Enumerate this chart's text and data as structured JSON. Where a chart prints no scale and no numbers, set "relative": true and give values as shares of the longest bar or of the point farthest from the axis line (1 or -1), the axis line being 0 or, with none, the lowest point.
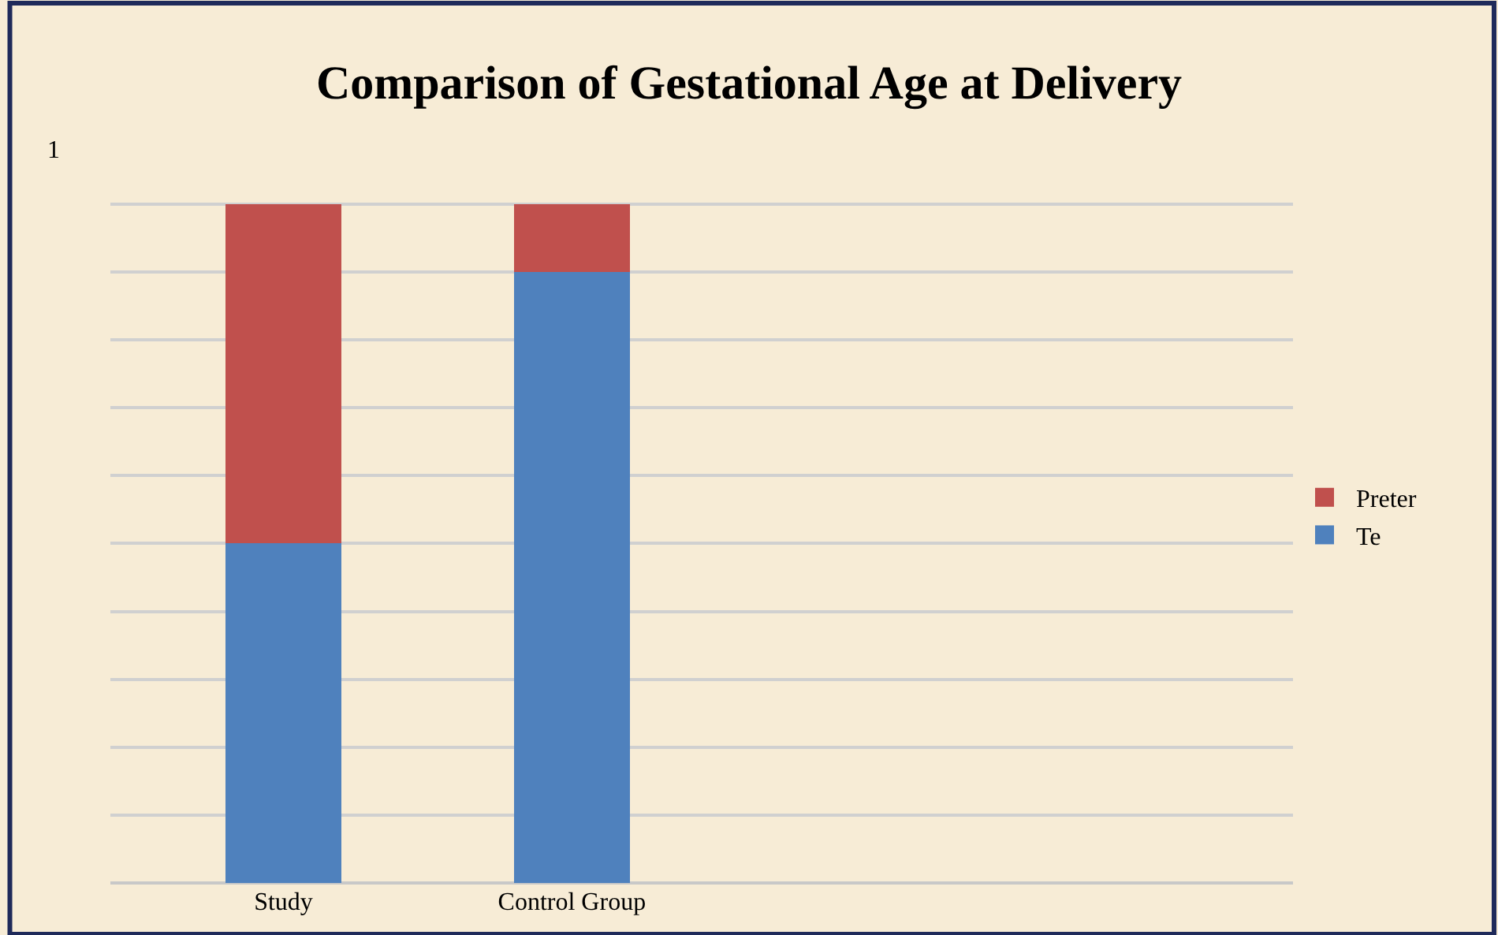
{
  "chart_data": {
    "type": "bar",
    "title": "Comparison of Gestational Age at Delivery",
    "categories": [
      "Study",
      "Control Group"
    ],
    "stacked": true,
    "relative": true,
    "grid": "y",
    "legend": "right",
    "series": [
      {
        "name": "Te",
        "color": "#4f81bd",
        "values": [
          0.5,
          0.9
        ]
      },
      {
        "name": "Preter",
        "color": "#c0504d",
        "values": [
          0.5,
          0.1
        ]
      }
    ],
    "annotations": [
      "1"
    ]
  }
}
